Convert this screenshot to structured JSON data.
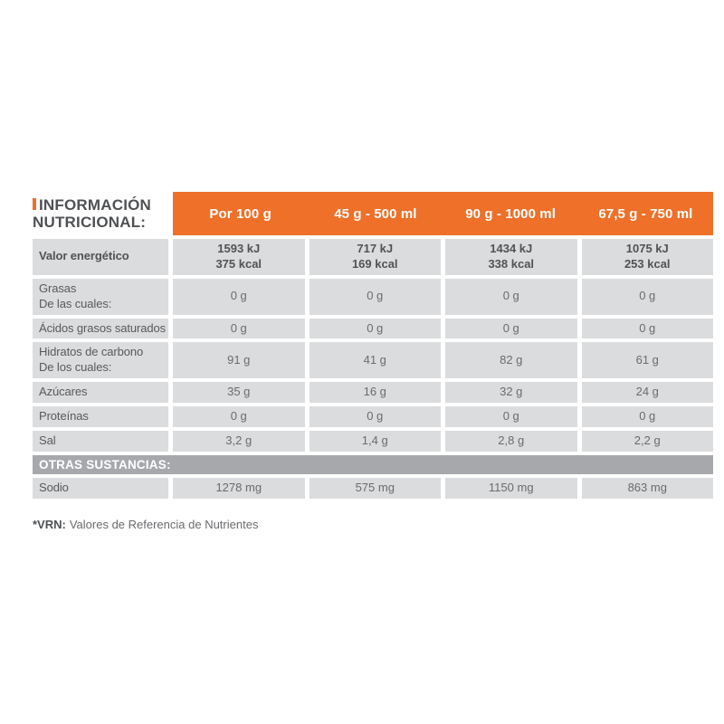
{
  "title": {
    "line1": "INFORMACIÓN",
    "line2": "NUTRICIONAL:"
  },
  "colors": {
    "accent_orange": "#ee7029",
    "cell_gray": "#dbdcdd",
    "section_bar_gray": "#a6a8ab",
    "label_text": "#58595c",
    "value_text": "#6a6b6e",
    "header_text": "#ffffff"
  },
  "table": {
    "column_headers": [
      "Por 100 g",
      "45 g - 500 ml",
      "90 g - 1000 ml",
      "67,5 g - 750 ml"
    ],
    "rows": [
      {
        "name": "valor-energetico",
        "bold": true,
        "label_lines": [
          "Valor energético"
        ],
        "values_lines": [
          [
            "1593 kJ",
            "375 kcal"
          ],
          [
            "717 kJ",
            "169 kcal"
          ],
          [
            "1434 kJ",
            "338 kcal"
          ],
          [
            "1075 kJ",
            "253 kcal"
          ]
        ]
      },
      {
        "name": "grasas",
        "bold": false,
        "label_lines": [
          "Grasas",
          "De las cuales:"
        ],
        "values_lines": [
          [
            "0 g"
          ],
          [
            "0 g"
          ],
          [
            "0 g"
          ],
          [
            "0 g"
          ]
        ]
      },
      {
        "name": "acidos-grasos-saturados",
        "bold": false,
        "label_lines": [
          "Ácidos grasos saturados"
        ],
        "values_lines": [
          [
            "0 g"
          ],
          [
            "0 g"
          ],
          [
            "0 g"
          ],
          [
            "0 g"
          ]
        ]
      },
      {
        "name": "hidratos-de-carbono",
        "bold": false,
        "label_lines": [
          "Hidratos de carbono",
          "De los cuales:"
        ],
        "values_lines": [
          [
            "91 g"
          ],
          [
            "41 g"
          ],
          [
            "82 g"
          ],
          [
            "61 g"
          ]
        ]
      },
      {
        "name": "azucares",
        "bold": false,
        "label_lines": [
          "Azúcares"
        ],
        "values_lines": [
          [
            "35 g"
          ],
          [
            "16 g"
          ],
          [
            "32 g"
          ],
          [
            "24 g"
          ]
        ]
      },
      {
        "name": "proteinas",
        "bold": false,
        "label_lines": [
          "Proteínas"
        ],
        "values_lines": [
          [
            "0 g"
          ],
          [
            "0 g"
          ],
          [
            "0 g"
          ],
          [
            "0 g"
          ]
        ]
      },
      {
        "name": "sal",
        "bold": false,
        "label_lines": [
          "Sal"
        ],
        "values_lines": [
          [
            "3,2 g"
          ],
          [
            "1,4 g"
          ],
          [
            "2,8 g"
          ],
          [
            "2,2 g"
          ]
        ]
      }
    ],
    "section_header": "OTRAS SUSTANCIAS:",
    "section_rows": [
      {
        "name": "sodio",
        "bold": false,
        "label_lines": [
          "Sodio"
        ],
        "values_lines": [
          [
            "1278 mg"
          ],
          [
            "575 mg"
          ],
          [
            "1150 mg"
          ],
          [
            "863 mg"
          ]
        ]
      }
    ]
  },
  "footnote": {
    "bold": "*VRN:",
    "text": "Valores de Referencia de Nutrientes"
  }
}
